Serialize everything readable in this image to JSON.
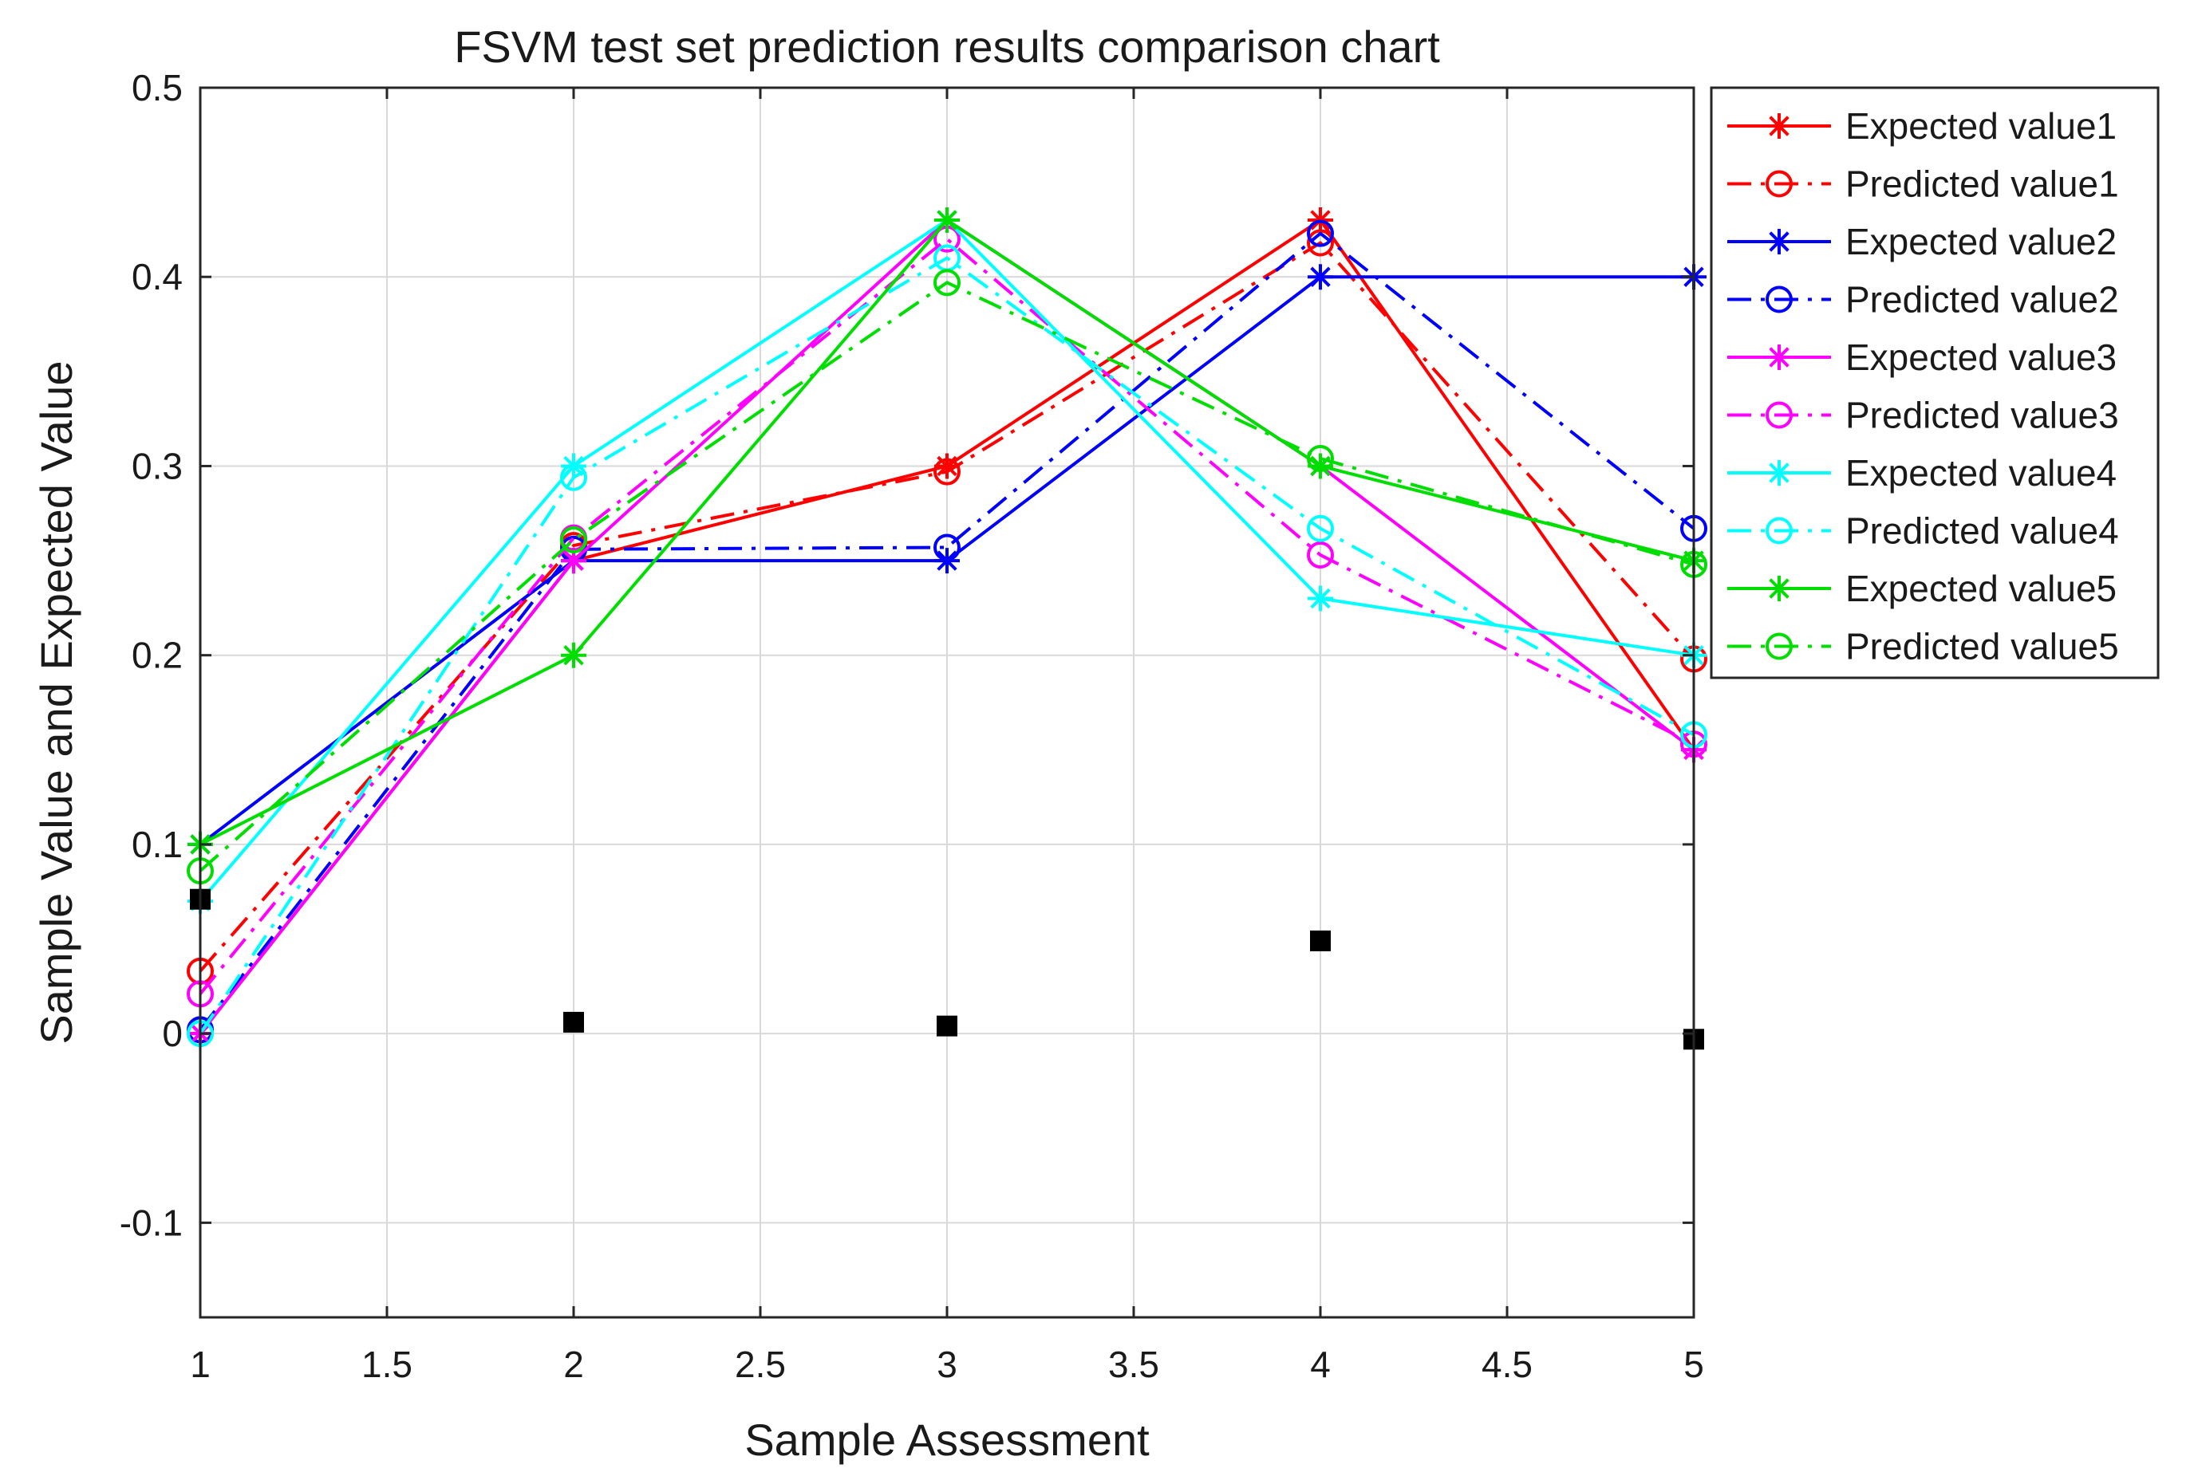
{
  "chart_data": {
    "type": "line",
    "title": "FSVM test set prediction results comparison chart",
    "xlabel": "Sample Assessment",
    "ylabel": "Sample Value and Expected Value",
    "xlim": [
      1,
      5
    ],
    "ylim": [
      -0.15,
      0.5
    ],
    "xticks": [
      1,
      1.5,
      2,
      2.5,
      3,
      3.5,
      4,
      4.5,
      5
    ],
    "xtick_labels": [
      "1",
      "1.5",
      "2",
      "2.5",
      "3",
      "3.5",
      "4",
      "4.5",
      "5"
    ],
    "yticks": [
      -0.1,
      0,
      0.1,
      0.2,
      0.3,
      0.4,
      0.5
    ],
    "ytick_labels": [
      "-0.1",
      "0",
      "0.1",
      "0.2",
      "0.3",
      "0.4",
      "0.5"
    ],
    "grid": true,
    "legend_position": "outside-top-right",
    "x": [
      1,
      2,
      3,
      4,
      5
    ],
    "series": [
      {
        "name": "Expected value1",
        "color": "#ff0000",
        "line": "solid",
        "marker": "asterisk",
        "values": [
          0.0,
          0.25,
          0.3,
          0.43,
          0.15
        ]
      },
      {
        "name": "Predicted value1",
        "color": "#ff0000",
        "line": "dashdot",
        "marker": "circle",
        "values": [
          0.033,
          0.258,
          0.297,
          0.418,
          0.198
        ]
      },
      {
        "name": "Expected value2",
        "color": "#0000ff",
        "line": "solid",
        "marker": "asterisk",
        "values": [
          0.1,
          0.25,
          0.25,
          0.4,
          0.4
        ]
      },
      {
        "name": "Predicted value2",
        "color": "#0000ff",
        "line": "dashdot",
        "marker": "circle",
        "values": [
          0.002,
          0.256,
          0.257,
          0.423,
          0.267
        ]
      },
      {
        "name": "Expected value3",
        "color": "#ff00ff",
        "line": "solid",
        "marker": "asterisk",
        "values": [
          0.0,
          0.25,
          0.43,
          0.3,
          0.15
        ]
      },
      {
        "name": "Predicted value3",
        "color": "#ff00ff",
        "line": "dashdot",
        "marker": "circle",
        "values": [
          0.021,
          0.262,
          0.42,
          0.253,
          0.153
        ]
      },
      {
        "name": "Expected value4",
        "color": "#00ffff",
        "line": "solid",
        "marker": "asterisk",
        "values": [
          0.07,
          0.3,
          0.43,
          0.23,
          0.2
        ]
      },
      {
        "name": "Predicted value4",
        "color": "#00ffff",
        "line": "dashdot",
        "marker": "circle",
        "values": [
          0.0,
          0.294,
          0.41,
          0.267,
          0.158
        ]
      },
      {
        "name": "Expected value5",
        "color": "#00dd00",
        "line": "solid",
        "marker": "asterisk",
        "values": [
          0.1,
          0.2,
          0.43,
          0.3,
          0.25
        ]
      },
      {
        "name": "Predicted value5",
        "color": "#00dd00",
        "line": "dashdot",
        "marker": "circle",
        "values": [
          0.086,
          0.261,
          0.397,
          0.304,
          0.248
        ]
      }
    ],
    "scatter_points": {
      "color": "#000000",
      "marker": "square",
      "x": [
        1,
        2,
        3,
        4,
        5
      ],
      "y": [
        0.071,
        0.006,
        0.004,
        0.049,
        -0.003
      ]
    }
  }
}
